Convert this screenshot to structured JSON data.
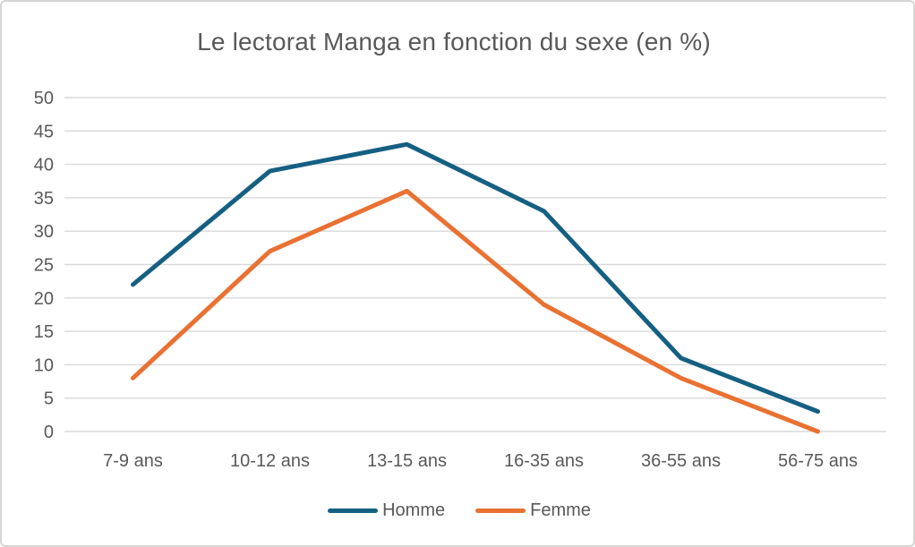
{
  "frame": {
    "background": "#ffffff",
    "border_color": "#d8d5d5"
  },
  "chart_data": {
    "type": "line",
    "title": "Le lectorat Manga en fonction du sexe (en %)",
    "categories": [
      "7-9 ans",
      "10-12 ans",
      "13-15 ans",
      "16-35 ans",
      "36-55 ans",
      "56-75 ans"
    ],
    "series": [
      {
        "name": "Homme",
        "color": "#156082",
        "values": [
          22,
          39,
          43,
          33,
          11,
          3
        ]
      },
      {
        "name": "Femme",
        "color": "#E97132",
        "values": [
          8,
          27,
          36,
          19,
          8,
          0
        ]
      }
    ],
    "xlabel": "",
    "ylabel": "",
    "ylim": [
      0,
      50
    ],
    "yticks": [
      0,
      5,
      10,
      15,
      20,
      25,
      30,
      35,
      40,
      45,
      50
    ],
    "grid": true,
    "legend_position": "bottom",
    "line_width": 5,
    "text_color": "#595959",
    "grid_color": "#d9d9d9",
    "tick_font_size": 20
  }
}
